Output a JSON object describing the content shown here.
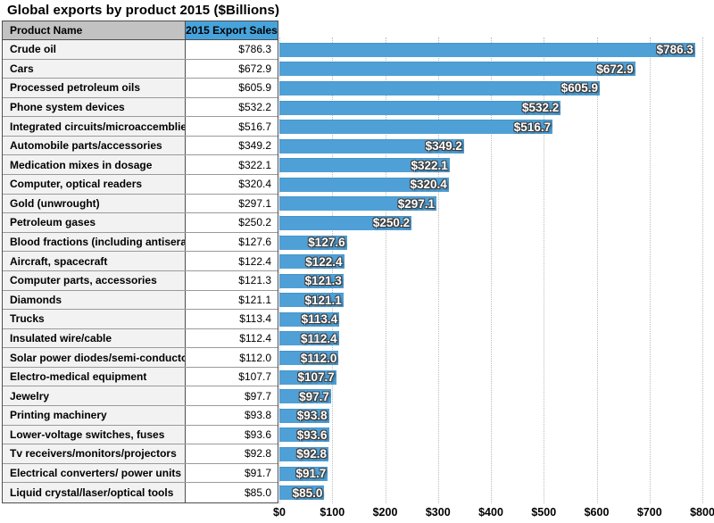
{
  "title": "Global exports by product 2015 ($Billions)",
  "table": {
    "columns": [
      "Product Name",
      "2015 Export Sales"
    ]
  },
  "chart_data": {
    "type": "bar",
    "orientation": "horizontal",
    "title": "Global exports by product 2015 ($Billions)",
    "categories": [
      "Crude oil",
      "Cars",
      "Processed petroleum oils",
      "Phone system devices",
      "Integrated circuits/microaccemblies",
      "Automobile parts/accessories",
      "Medication mixes in dosage",
      "Computer, optical readers",
      "Gold (unwrought)",
      "Petroleum gases",
      "Blood fractions (including antisera)",
      "Aircraft, spacecraft",
      "Computer parts, accessories",
      "Diamonds",
      "Trucks",
      "Insulated wire/cable",
      "Solar power diodes/semi-conductors",
      "Electro-medical equipment",
      "Jewelry",
      "Printing machinery",
      "Lower-voltage switches, fuses",
      "Tv receivers/monitors/projectors",
      "Electrical converters/ power units",
      "Liquid crystal/laser/optical tools"
    ],
    "values": [
      786.3,
      672.9,
      605.9,
      532.2,
      516.7,
      349.2,
      322.1,
      320.4,
      297.1,
      250.2,
      127.6,
      122.4,
      121.3,
      121.1,
      113.4,
      112.4,
      112.0,
      107.7,
      97.7,
      93.8,
      93.6,
      92.8,
      91.7,
      85.0
    ],
    "value_labels": [
      "$786.3",
      "$672.9",
      "$605.9",
      "$532.2",
      "$516.7",
      "$349.2",
      "$322.1",
      "$320.4",
      "$297.1",
      "$250.2",
      "$127.6",
      "$122.4",
      "$121.3",
      "$121.1",
      "$113.4",
      "$112.4",
      "$112.0",
      "$107.7",
      "$97.7",
      "$93.8",
      "$93.6",
      "$92.8",
      "$91.7",
      "$85.0"
    ],
    "xlabel": "",
    "ylabel": "",
    "xlim": [
      0,
      800
    ],
    "xtick_labels": [
      "$0",
      "$100",
      "$200",
      "$300",
      "$400",
      "$500",
      "$600",
      "$700",
      "$800"
    ],
    "grid": "vertical-dotted",
    "legend": "none",
    "bar_color": "#4fa0d6",
    "header_product_bg": "#c2c2c2",
    "header_value_bg": "#46a3dc",
    "row_bg": "#f2f2f2"
  }
}
